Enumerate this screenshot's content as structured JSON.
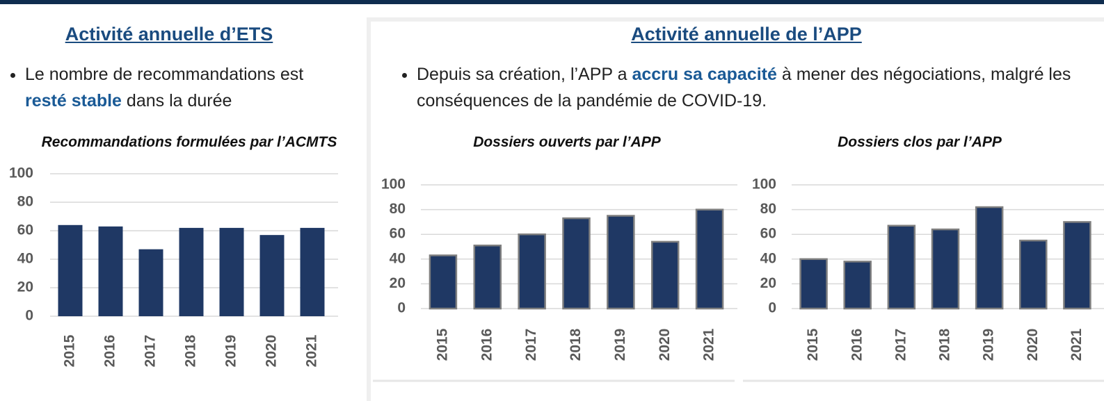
{
  "left": {
    "title": "Activité annuelle d’ETS",
    "bullet": [
      "Le nombre de recommandations est ",
      "resté stable",
      " dans la durée"
    ]
  },
  "right": {
    "title": "Activité annuelle de l’APP",
    "bullet": [
      "Depuis sa création, l’APP a ",
      "accru sa capacité",
      " à mener des négociations, malgré les conséquences de la pandémie de COVID-19."
    ]
  },
  "chart_data": [
    {
      "type": "bar",
      "title": "Recommandations formulées par l’ACMTS",
      "categories": [
        "2015",
        "2016",
        "2017",
        "2018",
        "2019",
        "2020",
        "2021"
      ],
      "values": [
        64,
        63,
        47,
        62,
        62,
        57,
        62
      ],
      "color": "#1f3864",
      "ylim": [
        0,
        100
      ],
      "yticks": [
        0,
        20,
        40,
        60,
        80,
        100
      ],
      "grid": true
    },
    {
      "type": "bar",
      "title": "Dossiers ouverts par l’APP",
      "categories": [
        "2015",
        "2016",
        "2017",
        "2018",
        "2019",
        "2020",
        "2021"
      ],
      "values": [
        43,
        51,
        60,
        73,
        75,
        54,
        80
      ],
      "color": "#1f3864",
      "ylim": [
        0,
        100
      ],
      "yticks": [
        0,
        20,
        40,
        60,
        80,
        100
      ],
      "grid": true
    },
    {
      "type": "bar",
      "title": "Dossiers clos par l’APP",
      "categories": [
        "2015",
        "2016",
        "2017",
        "2018",
        "2019",
        "2020",
        "2021"
      ],
      "values": [
        40,
        38,
        67,
        64,
        82,
        55,
        70
      ],
      "color": "#1f3864",
      "ylim": [
        0,
        100
      ],
      "yticks": [
        0,
        20,
        40,
        60,
        80,
        100
      ],
      "grid": true
    }
  ]
}
